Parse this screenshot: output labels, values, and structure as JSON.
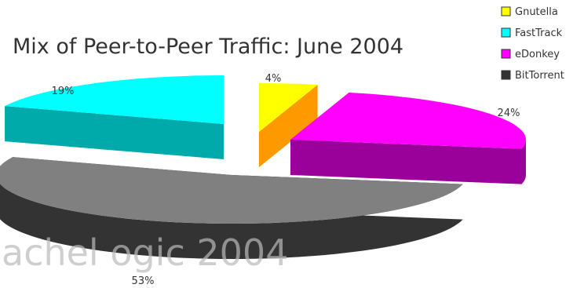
{
  "chart_data": {
    "type": "pie",
    "title": "Mix of Peer-to-Peer Traffic: June 2004",
    "legend_position": "top-right",
    "slices": [
      {
        "name": "Gnutella",
        "value": 4,
        "label": "4%",
        "color": "#ffff00",
        "side_color": "#ff9900"
      },
      {
        "name": "FastTrack",
        "value": 19,
        "label": "19%",
        "color": "#00ffff",
        "side_color": "#00aaaa"
      },
      {
        "name": "eDonkey",
        "value": 24,
        "label": "24%",
        "color": "#ff00ff",
        "side_color": "#9a009a"
      },
      {
        "name": "BitTorrent",
        "value": 53,
        "label": "53%",
        "color": "#808080",
        "side_color": "#333333"
      }
    ]
  },
  "watermark": "achel ogic 2004"
}
